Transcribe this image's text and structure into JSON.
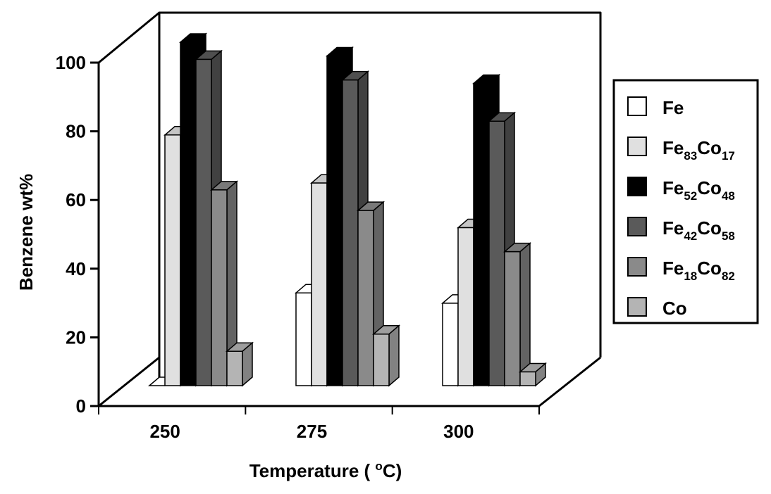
{
  "chart_data": {
    "type": "bar",
    "style": "3d-clustered-column",
    "title": "",
    "xlabel_main": "Temperature ( ",
    "xlabel_sup": "o",
    "xlabel_tail": "C)",
    "ylabel": "Benzene wt%",
    "ylim": [
      0,
      100
    ],
    "yticks": [
      "0",
      "20",
      "40",
      "60",
      "80",
      "100"
    ],
    "categories": [
      "250",
      "275",
      "300"
    ],
    "legend_position": "right",
    "series": [
      {
        "name": "Fe",
        "name_parts": [
          {
            "t": "Fe",
            "sub": ""
          }
        ],
        "color": "#ffffff",
        "values": [
          0,
          27,
          24
        ]
      },
      {
        "name": "Fe83Co17",
        "name_parts": [
          {
            "t": "Fe",
            "sub": "83"
          },
          {
            "t": "Co",
            "sub": "17"
          }
        ],
        "color": "#e0e0e0",
        "values": [
          73,
          59,
          46
        ]
      },
      {
        "name": "Fe52Co48",
        "name_parts": [
          {
            "t": "Fe",
            "sub": "52"
          },
          {
            "t": "Co",
            "sub": "48"
          }
        ],
        "color": "#000000",
        "values": [
          100,
          96,
          88
        ]
      },
      {
        "name": "Fe42Co58",
        "name_parts": [
          {
            "t": "Fe",
            "sub": "42"
          },
          {
            "t": "Co",
            "sub": "58"
          }
        ],
        "color": "#5a5a5a",
        "values": [
          95,
          89,
          77
        ]
      },
      {
        "name": "Fe18Co82",
        "name_parts": [
          {
            "t": "Fe",
            "sub": "18"
          },
          {
            "t": "Co",
            "sub": "82"
          }
        ],
        "color": "#8a8a8a",
        "values": [
          57,
          51,
          39
        ]
      },
      {
        "name": "Co",
        "name_parts": [
          {
            "t": "Co",
            "sub": ""
          }
        ],
        "color": "#b4b4b4",
        "values": [
          10,
          15,
          4
        ]
      }
    ]
  }
}
